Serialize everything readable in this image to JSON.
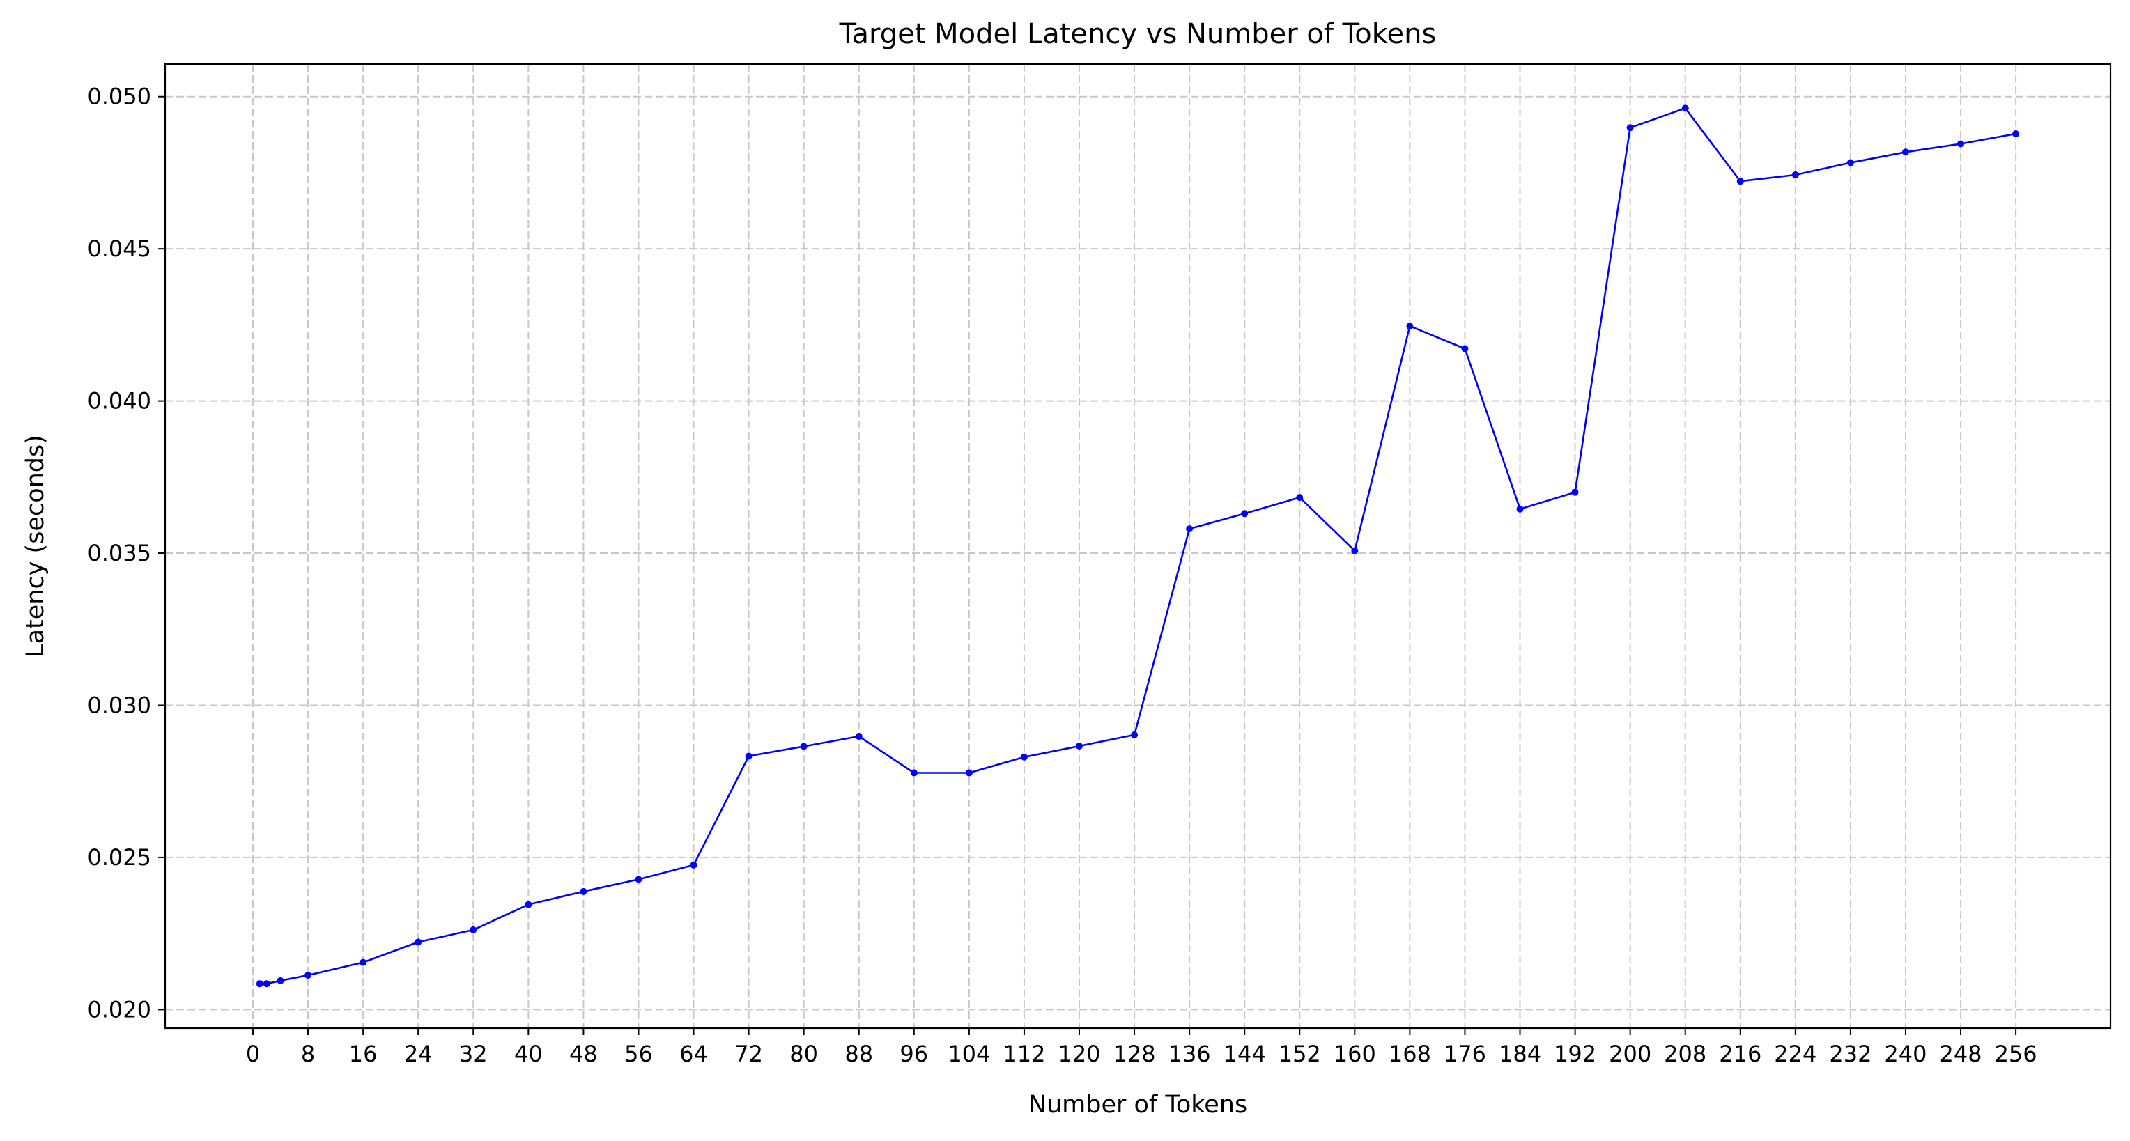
{
  "chart_data": {
    "type": "line",
    "title": "Target Model Latency vs Number of Tokens",
    "xlabel": "Number of Tokens",
    "ylabel": "Latency (seconds)",
    "x": [
      1,
      2,
      4,
      8,
      16,
      24,
      32,
      40,
      48,
      56,
      64,
      72,
      80,
      88,
      96,
      104,
      112,
      120,
      128,
      136,
      144,
      152,
      160,
      168,
      176,
      184,
      192,
      200,
      208,
      216,
      224,
      232,
      240,
      248,
      256
    ],
    "series": [
      {
        "color": "#0000ff",
        "values": [
          0.02085,
          0.02085,
          0.02095,
          0.02113,
          0.02155,
          0.02222,
          0.02262,
          0.02345,
          0.02388,
          0.02428,
          0.02475,
          0.02833,
          0.02865,
          0.02898,
          0.02778,
          0.02778,
          0.0283,
          0.02866,
          0.02903,
          0.0358,
          0.0363,
          0.03683,
          0.03508,
          0.04246,
          0.04172,
          0.03645,
          0.037,
          0.04898,
          0.04962,
          0.04722,
          0.04743,
          0.04783,
          0.04818,
          0.04845,
          0.04878
        ]
      }
    ],
    "xticks": [
      "0",
      "8",
      "16",
      "24",
      "32",
      "40",
      "48",
      "56",
      "64",
      "72",
      "80",
      "88",
      "96",
      "104",
      "112",
      "120",
      "128",
      "136",
      "144",
      "152",
      "160",
      "168",
      "176",
      "184",
      "192",
      "200",
      "208",
      "216",
      "224",
      "232",
      "240",
      "248",
      "256"
    ],
    "xtick_values": [
      0,
      8,
      16,
      24,
      32,
      40,
      48,
      56,
      64,
      72,
      80,
      88,
      96,
      104,
      112,
      120,
      128,
      136,
      144,
      152,
      160,
      168,
      176,
      184,
      192,
      200,
      208,
      216,
      224,
      232,
      240,
      248,
      256
    ],
    "yticks": [
      "0.020",
      "0.025",
      "0.030",
      "0.035",
      "0.040",
      "0.045",
      "0.050"
    ],
    "ytick_values": [
      0.02,
      0.025,
      0.03,
      0.035,
      0.04,
      0.045,
      0.05
    ],
    "xlim": [
      -12.75,
      269.75
    ],
    "ylim": [
      0.01939,
      0.05107
    ],
    "grid": true,
    "grid_style": "dashed",
    "legend": false
  }
}
